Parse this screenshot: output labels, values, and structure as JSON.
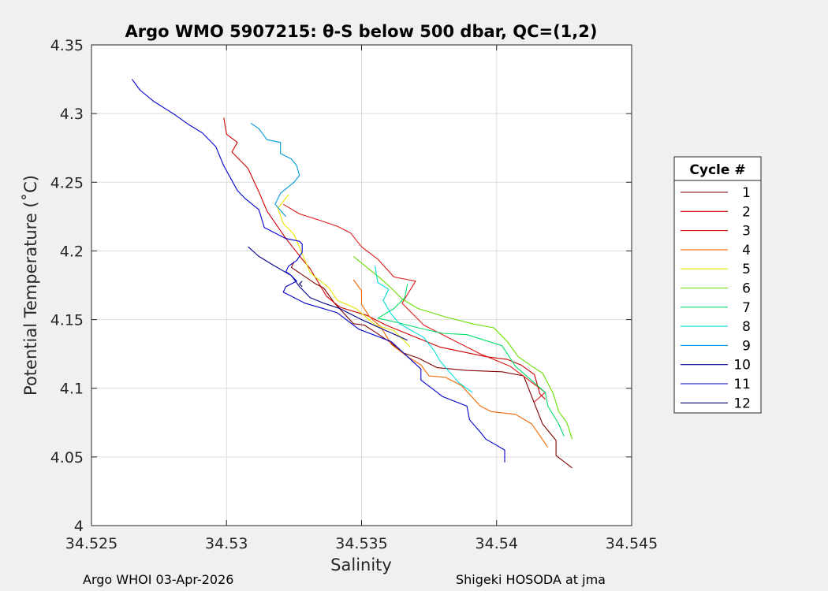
{
  "chart_data": {
    "type": "line",
    "title": "Argo WMO 5907215: θ-S below 500 dbar,  QC=(1,2)",
    "xlabel": "Salinity",
    "ylabel": "Potential Temperature (˚C)",
    "xlim": [
      34.525,
      34.545
    ],
    "ylim": [
      4.0,
      4.35
    ],
    "xticks": [
      34.525,
      34.53,
      34.535,
      34.54,
      34.545
    ],
    "xtick_labels": [
      "34.525",
      "34.53",
      "34.535",
      "34.54",
      "34.545"
    ],
    "yticks": [
      4.0,
      4.05,
      4.1,
      4.15,
      4.2,
      4.25,
      4.3,
      4.35
    ],
    "ytick_labels": [
      "4",
      "4.05",
      "4.1",
      "4.15",
      "4.2",
      "4.25",
      "4.3",
      "4.35"
    ],
    "grid": true,
    "legend": {
      "title": "Cycle #",
      "position": "right"
    },
    "series": [
      {
        "name": "1",
        "color": "#800000",
        "points": [
          [
            34.5428,
            4.042
          ],
          [
            34.5422,
            4.051
          ],
          [
            34.5422,
            4.062
          ],
          [
            34.5417,
            4.074
          ],
          [
            34.5412,
            4.099
          ],
          [
            34.541,
            4.109
          ],
          [
            34.5402,
            4.112
          ],
          [
            34.5389,
            4.113
          ],
          [
            34.5378,
            4.115
          ],
          [
            34.5371,
            4.122
          ],
          [
            34.5365,
            4.126
          ],
          [
            34.5361,
            4.133
          ],
          [
            34.5355,
            4.141
          ],
          [
            34.5351,
            4.146
          ],
          [
            34.5347,
            4.147
          ],
          [
            34.534,
            4.162
          ],
          [
            34.5336,
            4.173
          ],
          [
            34.5333,
            4.176
          ],
          [
            34.5324,
            4.188
          ],
          [
            34.5325,
            4.192
          ]
        ]
      },
      {
        "name": "2",
        "color": "#cc0000",
        "points": [
          [
            34.5418,
            4.092
          ],
          [
            34.5416,
            4.096
          ],
          [
            34.5414,
            4.11
          ],
          [
            34.5409,
            4.117
          ],
          [
            34.5404,
            4.121
          ],
          [
            34.5396,
            4.123
          ],
          [
            34.5379,
            4.13
          ],
          [
            34.5369,
            4.138
          ],
          [
            34.5359,
            4.146
          ],
          [
            34.5352,
            4.153
          ],
          [
            34.5342,
            4.159
          ],
          [
            34.5337,
            4.167
          ],
          [
            34.5331,
            4.187
          ],
          [
            34.5328,
            4.194
          ],
          [
            34.5322,
            4.209
          ],
          [
            34.5315,
            4.229
          ],
          [
            34.5312,
            4.243
          ],
          [
            34.5308,
            4.26
          ],
          [
            34.5302,
            4.272
          ],
          [
            34.5304,
            4.279
          ],
          [
            34.53,
            4.285
          ],
          [
            34.5299,
            4.297
          ]
        ]
      },
      {
        "name": "3",
        "color": "#dd1a1a",
        "points": [
          [
            34.5414,
            4.09
          ],
          [
            34.5418,
            4.097
          ],
          [
            34.5405,
            4.116
          ],
          [
            34.5394,
            4.125
          ],
          [
            34.5383,
            4.136
          ],
          [
            34.5373,
            4.146
          ],
          [
            34.5365,
            4.162
          ],
          [
            34.537,
            4.178
          ],
          [
            34.5362,
            4.181
          ],
          [
            34.5356,
            4.194
          ],
          [
            34.535,
            4.203
          ],
          [
            34.5346,
            4.213
          ],
          [
            34.5341,
            4.218
          ],
          [
            34.5335,
            4.222
          ],
          [
            34.5327,
            4.227
          ],
          [
            34.5321,
            4.234
          ]
        ]
      },
      {
        "name": "4",
        "color": "#ee6600",
        "points": [
          [
            34.5419,
            4.057
          ],
          [
            34.5413,
            4.074
          ],
          [
            34.5407,
            4.081
          ],
          [
            34.5398,
            4.083
          ],
          [
            34.5394,
            4.087
          ],
          [
            34.5387,
            4.102
          ],
          [
            34.5381,
            4.108
          ],
          [
            34.5375,
            4.109
          ],
          [
            34.5372,
            4.117
          ],
          [
            34.5367,
            4.123
          ],
          [
            34.5361,
            4.132
          ],
          [
            34.5357,
            4.145
          ],
          [
            34.5353,
            4.152
          ],
          [
            34.535,
            4.161
          ],
          [
            34.535,
            4.171
          ],
          [
            34.5347,
            4.179
          ]
        ]
      },
      {
        "name": "5",
        "color": "#e6e600",
        "points": [
          [
            34.5368,
            4.13
          ],
          [
            34.5362,
            4.142
          ],
          [
            34.5355,
            4.146
          ],
          [
            34.5348,
            4.158
          ],
          [
            34.5341,
            4.164
          ],
          [
            34.5338,
            4.173
          ],
          [
            34.5331,
            4.184
          ],
          [
            34.5328,
            4.198
          ],
          [
            34.5325,
            4.212
          ],
          [
            34.5321,
            4.22
          ],
          [
            34.5319,
            4.231
          ],
          [
            34.5323,
            4.241
          ]
        ]
      },
      {
        "name": "6",
        "color": "#66dd00",
        "points": [
          [
            34.5428,
            4.063
          ],
          [
            34.5426,
            4.075
          ],
          [
            34.5423,
            4.083
          ],
          [
            34.5421,
            4.096
          ],
          [
            34.5417,
            4.111
          ],
          [
            34.5413,
            4.116
          ],
          [
            34.5408,
            4.123
          ],
          [
            34.5404,
            4.134
          ],
          [
            34.5399,
            4.144
          ],
          [
            34.5391,
            4.147
          ],
          [
            34.5381,
            4.152
          ],
          [
            34.5371,
            4.158
          ],
          [
            34.5365,
            4.165
          ],
          [
            34.5361,
            4.173
          ],
          [
            34.5357,
            4.18
          ],
          [
            34.5347,
            4.196
          ]
        ]
      },
      {
        "name": "7",
        "color": "#00dd66",
        "points": [
          [
            34.5425,
            4.065
          ],
          [
            34.5423,
            4.074
          ],
          [
            34.5419,
            4.087
          ],
          [
            34.5418,
            4.097
          ],
          [
            34.5407,
            4.116
          ],
          [
            34.5402,
            4.131
          ],
          [
            34.5389,
            4.139
          ],
          [
            34.538,
            4.14
          ],
          [
            34.5371,
            4.144
          ],
          [
            34.5363,
            4.148
          ],
          [
            34.5356,
            4.151
          ],
          [
            34.5362,
            4.158
          ],
          [
            34.5366,
            4.166
          ],
          [
            34.5367,
            4.176
          ]
        ]
      },
      {
        "name": "8",
        "color": "#00dddd",
        "points": [
          [
            34.5391,
            4.097
          ],
          [
            34.5386,
            4.104
          ],
          [
            34.5379,
            4.12
          ],
          [
            34.5377,
            4.127
          ],
          [
            34.5373,
            4.137
          ],
          [
            34.5364,
            4.147
          ],
          [
            34.5361,
            4.154
          ],
          [
            34.5358,
            4.164
          ],
          [
            34.536,
            4.172
          ],
          [
            34.5356,
            4.177
          ],
          [
            34.5355,
            4.189
          ]
        ]
      },
      {
        "name": "9",
        "color": "#0099dd",
        "points": [
          [
            34.5322,
            4.225
          ],
          [
            34.5318,
            4.234
          ],
          [
            34.532,
            4.242
          ],
          [
            34.5325,
            4.25
          ],
          [
            34.5327,
            4.255
          ],
          [
            34.5326,
            4.262
          ],
          [
            34.5324,
            4.267
          ],
          [
            34.532,
            4.271
          ],
          [
            34.532,
            4.279
          ],
          [
            34.5315,
            4.281
          ],
          [
            34.5312,
            4.289
          ],
          [
            34.5309,
            4.293
          ]
        ]
      },
      {
        "name": "10",
        "color": "#000088",
        "points": [
          [
            34.5367,
            4.135
          ],
          [
            34.5359,
            4.142
          ],
          [
            34.535,
            4.15
          ],
          [
            34.5342,
            4.158
          ],
          [
            34.5336,
            4.162
          ],
          [
            34.5331,
            4.166
          ],
          [
            34.5327,
            4.174
          ],
          [
            34.5324,
            4.182
          ],
          [
            34.5317,
            4.19
          ],
          [
            34.5312,
            4.196
          ],
          [
            34.5308,
            4.203
          ]
        ]
      },
      {
        "name": "11",
        "color": "#0000cc",
        "points": [
          [
            34.5403,
            4.046
          ],
          [
            34.5403,
            4.055
          ],
          [
            34.5396,
            4.063
          ],
          [
            34.5394,
            4.068
          ],
          [
            34.539,
            4.077
          ],
          [
            34.5389,
            4.087
          ],
          [
            34.538,
            4.094
          ],
          [
            34.5376,
            4.1
          ],
          [
            34.5372,
            4.106
          ],
          [
            34.5372,
            4.114
          ],
          [
            34.5361,
            4.134
          ],
          [
            34.5349,
            4.143
          ],
          [
            34.5341,
            4.155
          ],
          [
            34.5329,
            4.162
          ],
          [
            34.5324,
            4.167
          ],
          [
            34.5321,
            4.17
          ],
          [
            34.5322,
            4.174
          ],
          [
            34.5324,
            4.176
          ],
          [
            34.5326,
            4.178
          ],
          [
            34.5324,
            4.182
          ],
          [
            34.5322,
            4.185
          ],
          [
            34.5323,
            4.189
          ],
          [
            34.5326,
            4.193
          ],
          [
            34.5328,
            4.199
          ],
          [
            34.5328,
            4.205
          ],
          [
            34.5327,
            4.207
          ],
          [
            34.5322,
            4.209
          ],
          [
            34.5314,
            4.217
          ],
          [
            34.5312,
            4.23
          ],
          [
            34.5307,
            4.238
          ],
          [
            34.5304,
            4.244
          ],
          [
            34.5299,
            4.262
          ],
          [
            34.5296,
            4.276
          ],
          [
            34.5291,
            4.286
          ],
          [
            34.5286,
            4.292
          ],
          [
            34.5281,
            4.299
          ],
          [
            34.5277,
            4.304
          ],
          [
            34.5273,
            4.309
          ],
          [
            34.5268,
            4.317
          ],
          [
            34.5265,
            4.325
          ]
        ]
      },
      {
        "name": "12",
        "color": "#000066",
        "points": [
          [
            34.5328,
            4.174
          ],
          [
            34.5327,
            4.176
          ],
          [
            34.5328,
            4.178
          ]
        ]
      }
    ],
    "footer_left": "Argo WHOI 03-Apr-2026",
    "footer_right": "Shigeki HOSODA at jma"
  }
}
